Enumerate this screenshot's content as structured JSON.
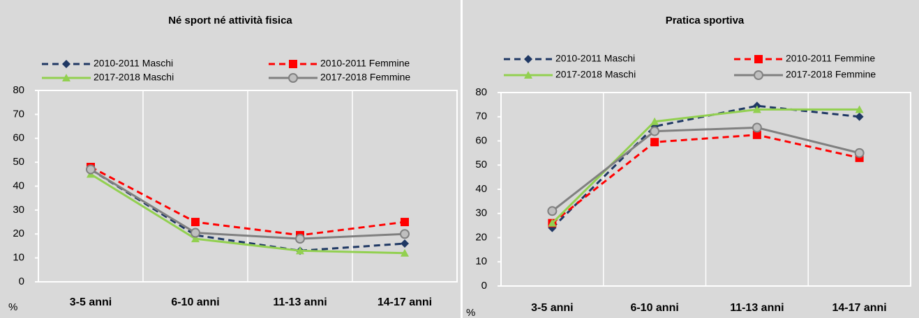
{
  "chart_data": [
    {
      "type": "line",
      "title": "Né sport né attività fisica",
      "ylabel": "%",
      "categories": [
        "3-5  anni",
        "6-10  anni",
        "11-13 anni",
        "14-17 anni"
      ],
      "ylim": [
        0,
        80
      ],
      "yticks": [
        0,
        10,
        20,
        30,
        40,
        50,
        60,
        70,
        80
      ],
      "grid": true,
      "series": [
        {
          "name": "2010-2011 Maschi",
          "color": "#1f3864",
          "dash": true,
          "marker": "diamond",
          "values": [
            47,
            19.5,
            13,
            16
          ]
        },
        {
          "name": "2010-2011 Femmine",
          "color": "#ff0000",
          "dash": true,
          "marker": "square",
          "values": [
            48,
            25,
            19.5,
            25
          ]
        },
        {
          "name": "2017-2018 Maschi",
          "color": "#92d050",
          "dash": false,
          "marker": "triangle",
          "values": [
            45,
            18,
            13,
            12
          ]
        },
        {
          "name": "2017-2018 Femmine",
          "color": "#808080",
          "dash": false,
          "marker": "circle",
          "values": [
            47,
            20.5,
            18,
            20
          ]
        }
      ]
    },
    {
      "type": "line",
      "title": "Pratica sportiva",
      "ylabel": "%",
      "categories": [
        "3-5  anni",
        "6-10  anni",
        "11-13 anni",
        "14-17 anni"
      ],
      "ylim": [
        0,
        80
      ],
      "yticks": [
        0,
        10,
        20,
        30,
        40,
        50,
        60,
        70,
        80
      ],
      "grid": true,
      "series": [
        {
          "name": "2010-2011 Maschi",
          "color": "#1f3864",
          "dash": true,
          "marker": "diamond",
          "values": [
            24,
            66,
            74.5,
            70
          ]
        },
        {
          "name": "2010-2011 Femmine",
          "color": "#ff0000",
          "dash": true,
          "marker": "square",
          "values": [
            26,
            59.5,
            62.5,
            53
          ]
        },
        {
          "name": "2017-2018 Maschi",
          "color": "#92d050",
          "dash": false,
          "marker": "triangle",
          "values": [
            26,
            68,
            73,
            73
          ]
        },
        {
          "name": "2017-2018 Femmine",
          "color": "#808080",
          "dash": false,
          "marker": "circle",
          "values": [
            31,
            64,
            65.5,
            55
          ]
        }
      ]
    }
  ]
}
